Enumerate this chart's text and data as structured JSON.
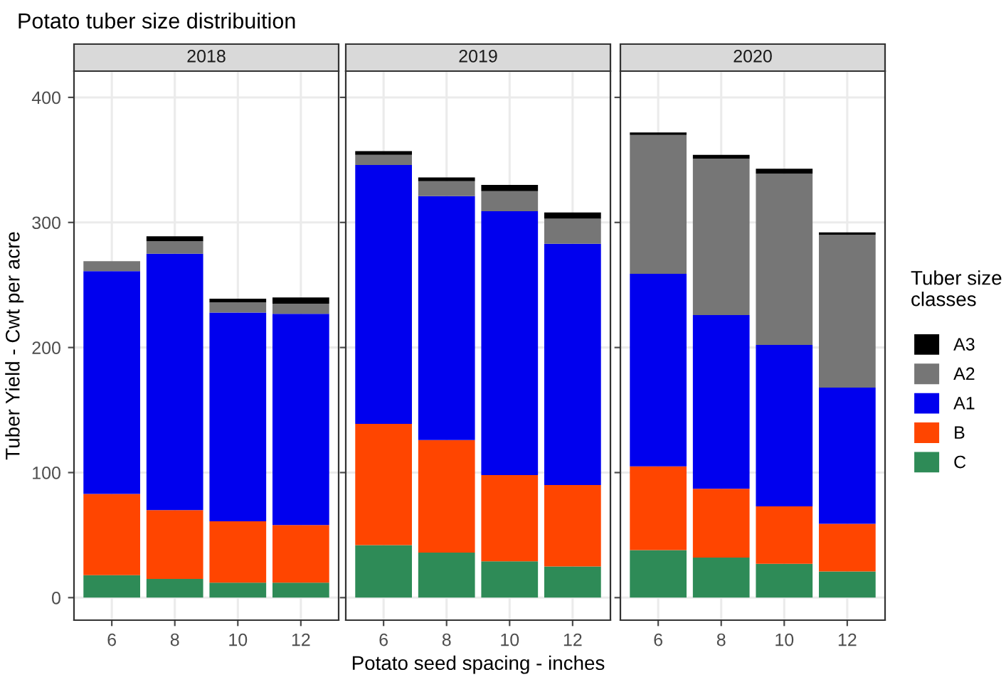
{
  "chart_data": [
    {
      "type": "bar",
      "stacked": true,
      "title": "Potato tuber size distribuition",
      "subtitle": "2018",
      "ylabel": "Tuber Yield - Cwt per acre",
      "categories": [
        "6",
        "8",
        "10",
        "12"
      ],
      "ylim": [
        -18,
        421
      ],
      "yticks": [
        0,
        100,
        200,
        300,
        400
      ],
      "grid": true,
      "series": [
        {
          "color": "#2e8b57",
          "values": [
            18,
            15,
            12,
            12
          ]
        },
        {
          "color": "#ff4500",
          "values": [
            65,
            55,
            49,
            46
          ]
        },
        {
          "color": "#0000ee",
          "values": [
            178,
            205,
            167,
            169
          ]
        },
        {
          "color": "#767676",
          "values": [
            8,
            10,
            8,
            8
          ]
        },
        {
          "color": "#000000",
          "values": [
            0,
            4,
            3,
            5
          ]
        }
      ]
    },
    {
      "type": "bar",
      "stacked": true,
      "subtitle": "2019",
      "xlabel": "Potato seed spacing - inches",
      "categories": [
        "6",
        "8",
        "10",
        "12"
      ],
      "ylim": [
        -18,
        421
      ],
      "yticks": [
        0,
        100,
        200,
        300,
        400
      ],
      "grid": true,
      "tick_labels": "x",
      "series": [
        {
          "color": "#2e8b57",
          "values": [
            42,
            36,
            29,
            25
          ]
        },
        {
          "color": "#ff4500",
          "values": [
            97,
            90,
            69,
            65
          ]
        },
        {
          "color": "#0000ee",
          "values": [
            207,
            195,
            211,
            193
          ]
        },
        {
          "color": "#767676",
          "values": [
            8,
            12,
            16,
            20
          ]
        },
        {
          "color": "#000000",
          "values": [
            3,
            3,
            5,
            5
          ]
        }
      ]
    },
    {
      "type": "bar",
      "stacked": true,
      "subtitle": "2020",
      "legend_title": "Tuber size classes",
      "categories": [
        "6",
        "8",
        "10",
        "12"
      ],
      "ylim": [
        -18,
        421
      ],
      "yticks": [
        0,
        100,
        200,
        300,
        400
      ],
      "grid": true,
      "legend": "right",
      "tick_labels": "x",
      "series": [
        {
          "name": "C",
          "color": "#2e8b57",
          "values": [
            38,
            32,
            27,
            21
          ]
        },
        {
          "name": "B",
          "color": "#ff4500",
          "values": [
            67,
            55,
            46,
            38
          ]
        },
        {
          "name": "A1",
          "color": "#0000ee",
          "values": [
            154,
            139,
            129,
            109
          ]
        },
        {
          "name": "A2",
          "color": "#767676",
          "values": [
            111,
            125,
            137,
            122
          ]
        },
        {
          "name": "A3",
          "color": "#000000",
          "values": [
            2,
            3,
            4,
            2
          ]
        }
      ]
    }
  ]
}
